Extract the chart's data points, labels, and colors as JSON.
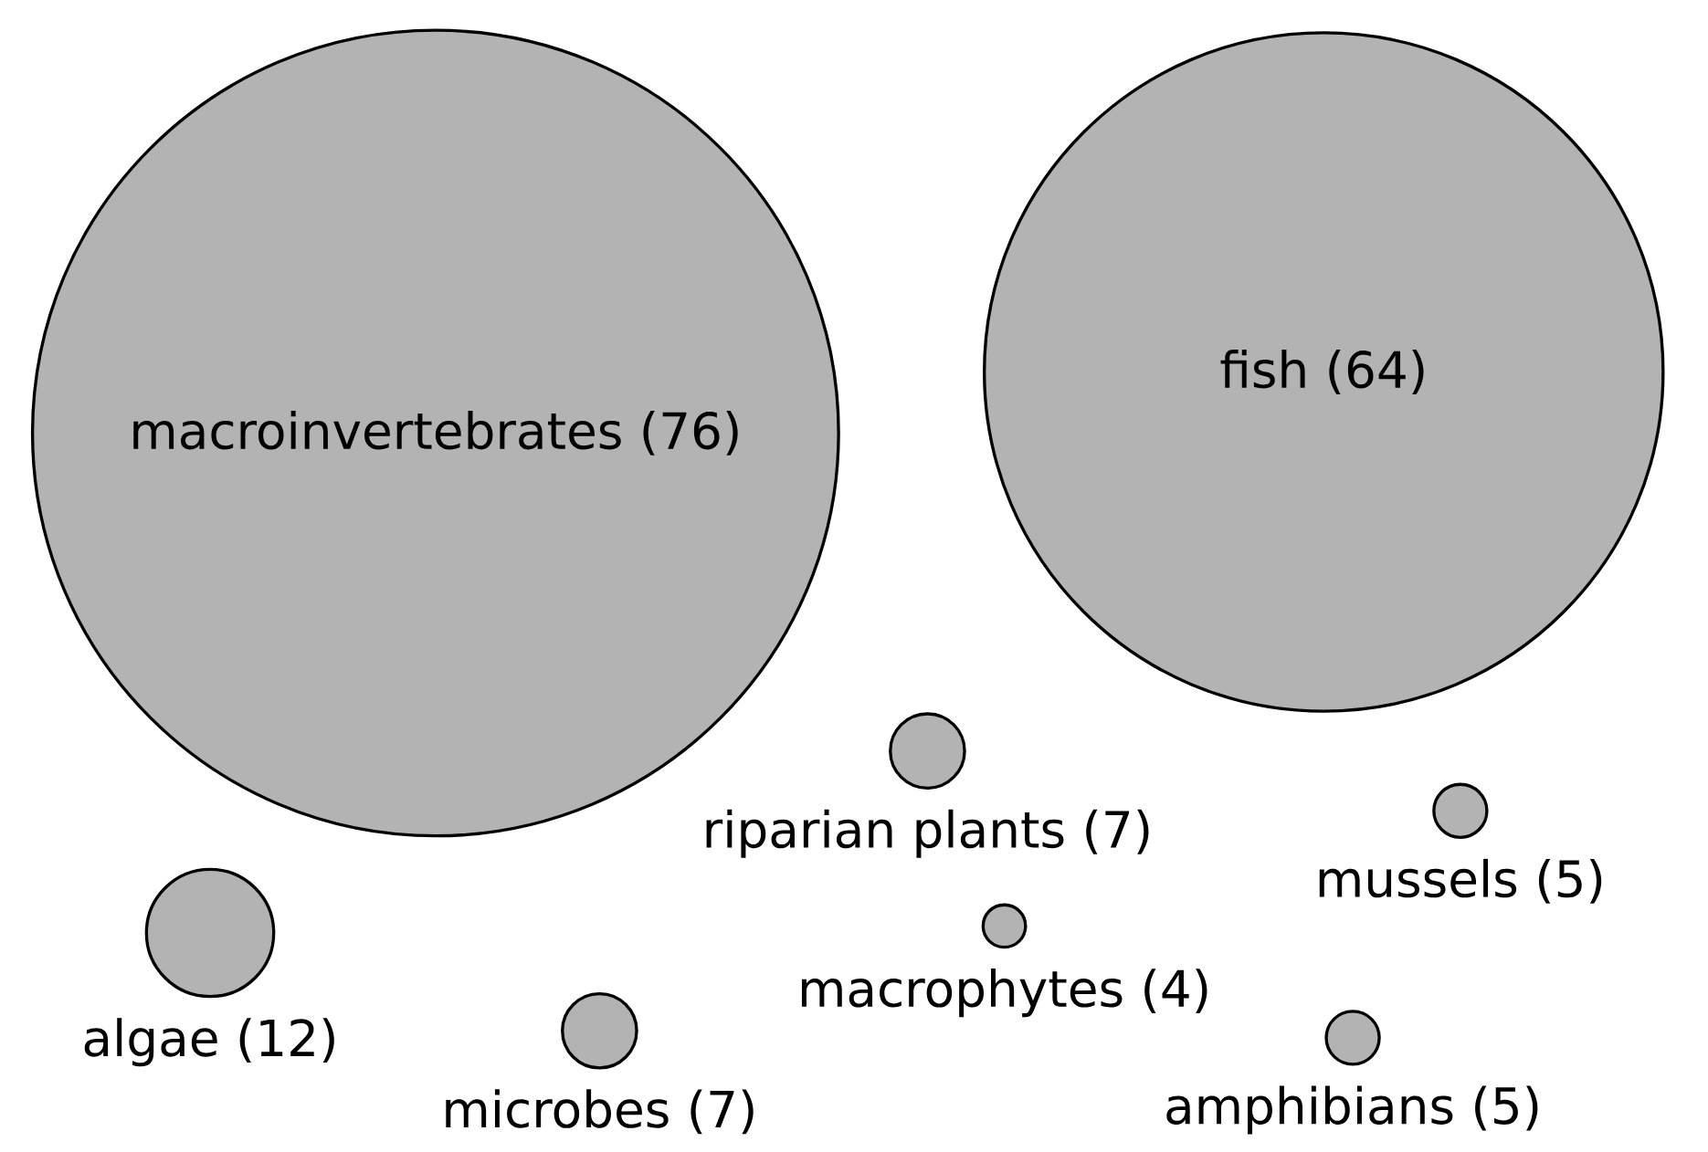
{
  "chart_data": {
    "type": "other",
    "color": "#b3b3b3",
    "value_labels": [
      "(76)",
      "(64)",
      "(7)",
      "(5)",
      "(12)",
      "(4)",
      "(7)",
      "(5)"
    ],
    "categories": [
      "macroinvertebrates",
      "fish",
      "riparian plants",
      "mussels",
      "algae",
      "macrophytes",
      "microbes",
      "amphibians"
    ],
    "values": [
      76,
      64,
      7,
      5,
      12,
      4,
      7,
      5
    ]
  }
}
